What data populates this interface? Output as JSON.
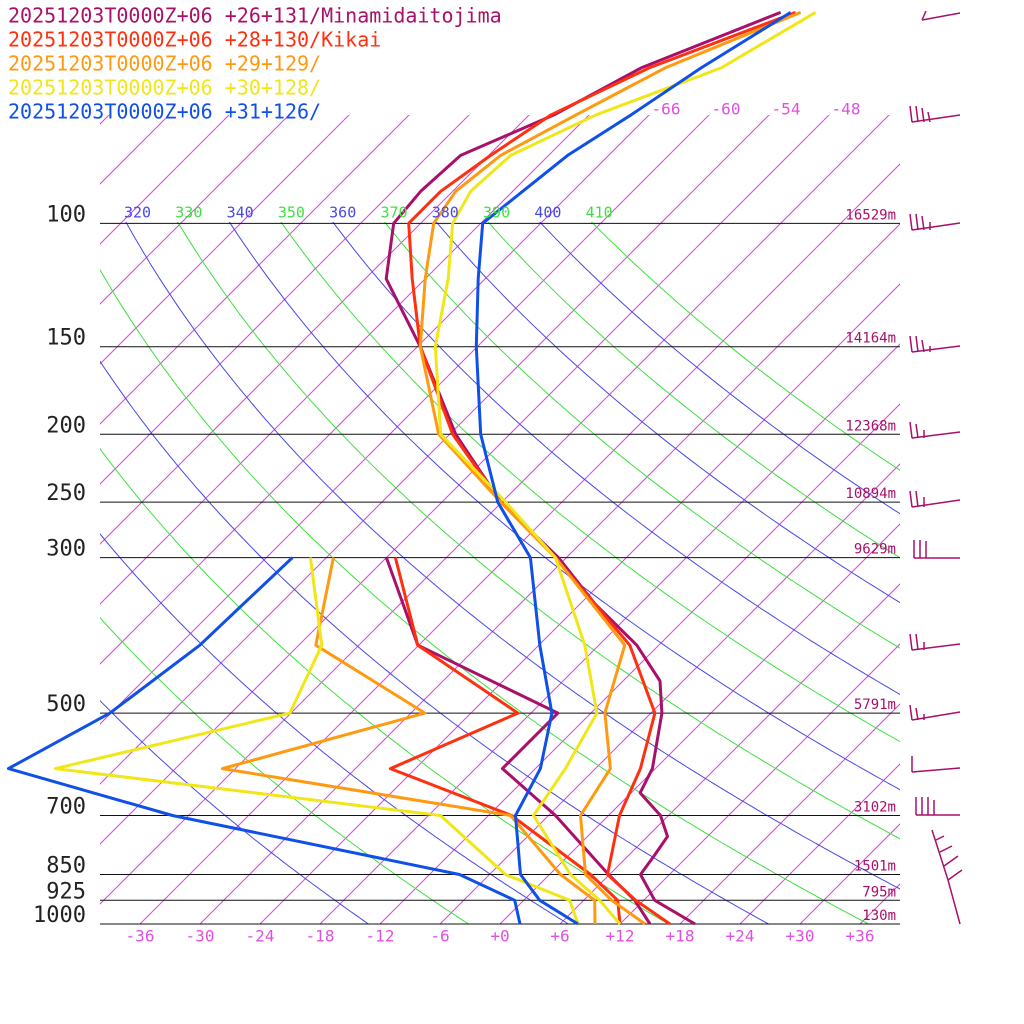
{
  "chart_data": {
    "type": "skewt",
    "title_lines_from_series": true,
    "ylim": [
      1000,
      48
    ],
    "xlim": [
      -40,
      40
    ],
    "yticks": [
      100,
      150,
      200,
      250,
      300,
      500,
      700,
      850,
      925,
      1000
    ],
    "height_labels": [
      "16529m",
      "14164m",
      "12368m",
      "10894m",
      "9629m",
      "5791m",
      "3102m",
      "1501m",
      "795m",
      "130m"
    ],
    "xticks": [
      -36,
      -30,
      -24,
      -18,
      -12,
      -6,
      {
        "value": 0,
        "label": "+0"
      },
      {
        "value": 6,
        "label": "+6"
      },
      {
        "value": 12,
        "label": "+12"
      },
      {
        "value": 18,
        "label": "+18"
      },
      {
        "value": 24,
        "label": "+24"
      },
      {
        "value": 30,
        "label": "+30"
      },
      {
        "value": 36,
        "label": "+36"
      }
    ],
    "isotherm_labels": [
      -66,
      -60,
      -54,
      -48
    ],
    "adiabat_labels": [
      320,
      330,
      340,
      350,
      360,
      370,
      380,
      390,
      400,
      410
    ],
    "adiabat_colors": [
      "#4848e8",
      "#40e040"
    ],
    "isotherm_color": "#e040e0",
    "series": [
      {
        "name": "20251203T0000Z+06 +26+131/Minamidaitojima",
        "color": "#a8106a",
        "pressure": [
          1000,
          925,
          850,
          800,
          750,
          700,
          650,
          600,
          550,
          500,
          450,
          400,
          350,
          300,
          250,
          200,
          150,
          120,
          100,
          90,
          80,
          70,
          60,
          50
        ],
        "temperature": [
          19.5,
          13.1,
          9.1,
          8.6,
          8.0,
          5.2,
          0.9,
          -0.3,
          -2.5,
          -4.9,
          -8.3,
          -14.2,
          -22.4,
          -30.8,
          -42.1,
          -53.4,
          -65.7,
          -75.9,
          -80.7,
          -81.2,
          -80.8,
          -75.5,
          -71.5,
          -63.1
        ],
        "dew_pressure": [
          1000,
          925,
          850,
          700,
          600,
          500,
          400,
          300
        ],
        "dewpoint": [
          15.0,
          11.1,
          5.9,
          -5.3,
          -15.3,
          -15.3,
          -36.1,
          -48.0
        ]
      },
      {
        "name": "20251203T0000Z+06 +28+130/Kikai",
        "color": "#ff3010",
        "pressure": [
          1000,
          925,
          850,
          700,
          600,
          500,
          400,
          300,
          250,
          200,
          150,
          120,
          100,
          90,
          80,
          70,
          60,
          50
        ],
        "temperature": [
          17.0,
          11.2,
          5.8,
          1.1,
          -1.5,
          -5.6,
          -14.9,
          -31.1,
          -42.1,
          -53.7,
          -65.7,
          -73.3,
          -79.2,
          -79.2,
          -77.8,
          -75.8,
          -70.7,
          -61.6
        ],
        "dew_pressure": [
          1000,
          925,
          850,
          700,
          600,
          500,
          400,
          300
        ],
        "dewpoint": [
          12.0,
          9.4,
          4.1,
          -9.7,
          -26.5,
          -19.3,
          -36.1,
          -47.1
        ]
      },
      {
        "name": "20251203T0000Z+06 +29+129/",
        "color": "#ff9a10",
        "pressure": [
          1000,
          925,
          850,
          700,
          600,
          500,
          400,
          300,
          250,
          200,
          150,
          120,
          100,
          90,
          80,
          70,
          60,
          50
        ],
        "temperature": [
          14.5,
          8.8,
          3.6,
          -2.8,
          -4.5,
          -10.6,
          -15.4,
          -31.1,
          -42.1,
          -55.1,
          -65.7,
          -72.0,
          -76.7,
          -77.7,
          -76.8,
          -73.3,
          -69.1,
          -61.1
        ],
        "dew_pressure": [
          1000,
          925,
          850,
          700,
          600,
          500,
          400,
          300
        ],
        "dewpoint": [
          9.5,
          7.1,
          1.1,
          -9.8,
          -43.3,
          -28.6,
          -46.3,
          -53.3
        ]
      },
      {
        "name": "20251203T0000Z+06 +30+128/",
        "color": "#f0e618",
        "pressure": [
          1000,
          925,
          850,
          700,
          600,
          500,
          400,
          300,
          250,
          200,
          150,
          120,
          100,
          90,
          80,
          70,
          60,
          50
        ],
        "temperature": [
          12.0,
          7.6,
          2.1,
          -7.5,
          -9.0,
          -11.4,
          -19.4,
          -31.1,
          -41.6,
          -54.9,
          -64.2,
          -69.7,
          -74.8,
          -76.2,
          -75.8,
          -71.3,
          -63.5,
          -59.6
        ],
        "dew_pressure": [
          1000,
          925,
          850,
          700,
          600,
          500,
          400,
          300
        ],
        "dewpoint": [
          7.8,
          4.6,
          -4.4,
          -16.8,
          -60.0,
          -42.1,
          -45.7,
          -55.6
        ]
      },
      {
        "name": "20251203T0000Z+06 +31+126/",
        "color": "#1050e8",
        "pressure": [
          1000,
          925,
          850,
          700,
          600,
          500,
          400,
          300,
          250,
          200,
          150,
          120,
          100,
          90,
          80,
          70,
          60,
          50
        ],
        "temperature": [
          7.8,
          1.6,
          -2.9,
          -9.3,
          -11.5,
          -15.9,
          -23.9,
          -33.6,
          -42.4,
          -50.9,
          -60.1,
          -66.7,
          -71.8,
          -71.0,
          -70.1,
          -67.8,
          -65.5,
          -62.1
        ],
        "dew_pressure": [
          1000,
          925,
          850,
          700,
          600,
          500,
          400,
          300
        ],
        "dewpoint": [
          2.0,
          -0.9,
          -9.0,
          -43.6,
          -64.7,
          -60.1,
          -57.9,
          -57.4
        ]
      }
    ]
  }
}
